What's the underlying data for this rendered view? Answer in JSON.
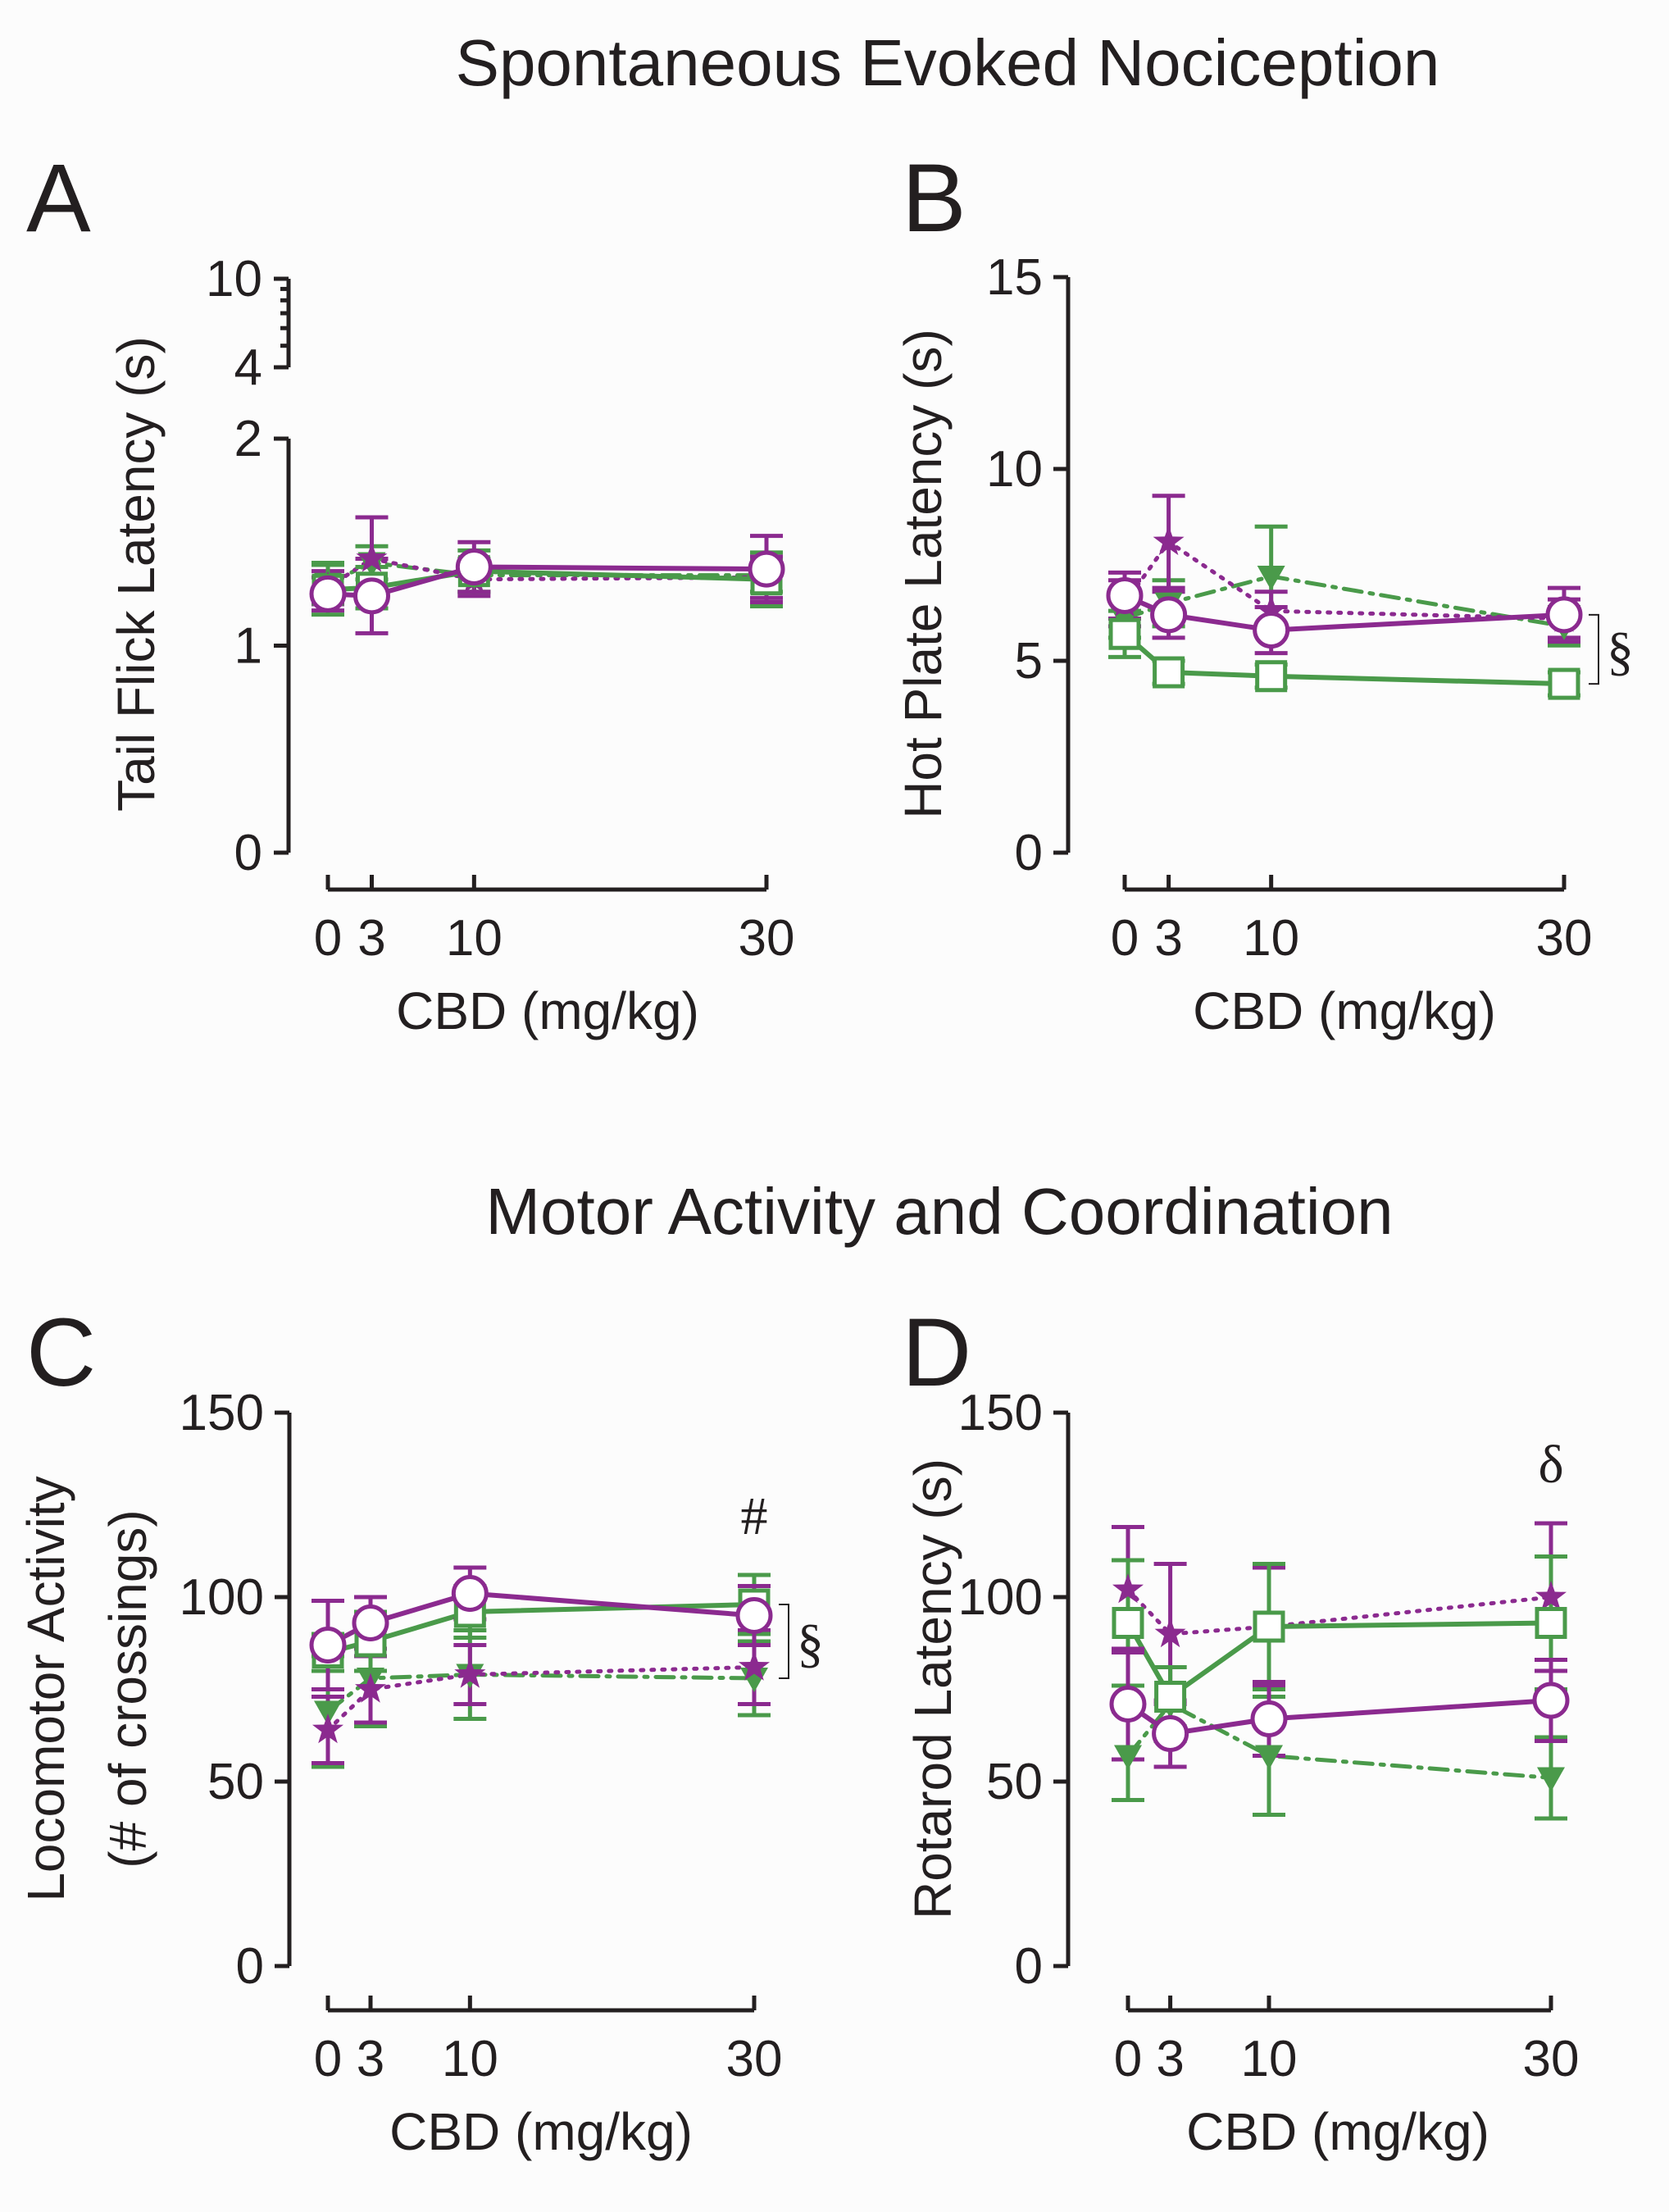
{
  "section_titles": {
    "top": "Spontaneous Evoked Nociception",
    "bottom": "Motor Activity and Coordination"
  },
  "colors": {
    "purple": "#8b2a8f",
    "green": "#4a9a4a",
    "axis": "#231f20",
    "background": "#fcfcfc"
  },
  "series_styles": [
    {
      "key": "purple_circle",
      "color": "purple",
      "marker": "open-circle",
      "line": "solid"
    },
    {
      "key": "green_square",
      "color": "green",
      "marker": "open-square",
      "line": "solid"
    },
    {
      "key": "purple_star",
      "color": "purple",
      "marker": "filled-star",
      "line": "dotted"
    },
    {
      "key": "green_triangle",
      "color": "green",
      "marker": "filled-triangle-down",
      "line": "dash-dot"
    }
  ],
  "chart_data": [
    {
      "panel": "A",
      "type": "line",
      "xlabel": "CBD (mg/kg)",
      "ylabel": "Tail Flick Latency (s)",
      "x": [
        0,
        3,
        10,
        30
      ],
      "x_ticks": [
        "0",
        "3",
        "10",
        "30"
      ],
      "xlim": [
        0,
        30
      ],
      "y_axis": "broken",
      "ylim_lower": [
        0,
        2
      ],
      "y_ticks_lower": [
        "0",
        "1",
        "2"
      ],
      "y_ticks_upper": [
        "4",
        "10"
      ],
      "series": [
        {
          "name": "purple_circle",
          "values": [
            1.25,
            1.24,
            1.38,
            1.37
          ],
          "err": [
            0.08,
            0.18,
            0.12,
            0.16
          ]
        },
        {
          "name": "green_square",
          "values": [
            1.27,
            1.28,
            1.36,
            1.32
          ],
          "err": [
            0.12,
            0.1,
            0.1,
            0.13
          ]
        },
        {
          "name": "purple_star",
          "values": [
            1.28,
            1.42,
            1.32,
            1.33
          ],
          "err": [
            0.08,
            0.2,
            0.08,
            0.1
          ]
        },
        {
          "name": "green_triangle",
          "values": [
            1.3,
            1.4,
            1.34,
            1.34
          ],
          "err": [
            0.1,
            0.08,
            0.08,
            0.08
          ]
        }
      ],
      "annotations": []
    },
    {
      "panel": "B",
      "type": "line",
      "xlabel": "CBD (mg/kg)",
      "ylabel": "Hot Plate Latency (s)",
      "x": [
        0,
        3,
        10,
        30
      ],
      "x_ticks": [
        "0",
        "3",
        "10",
        "30"
      ],
      "xlim": [
        0,
        30
      ],
      "ylim": [
        0,
        15
      ],
      "y_ticks": [
        "0",
        "5",
        "10",
        "15"
      ],
      "series": [
        {
          "name": "purple_circle",
          "values": [
            6.7,
            6.2,
            5.8,
            6.2
          ],
          "err": [
            0.6,
            0.6,
            0.6,
            0.7
          ]
        },
        {
          "name": "green_square",
          "values": [
            5.7,
            4.7,
            4.6,
            4.4
          ],
          "err": [
            0.6,
            0.3,
            0.3,
            0.3
          ]
        },
        {
          "name": "purple_star",
          "values": [
            6.5,
            8.1,
            6.3,
            6.1
          ],
          "err": [
            0.6,
            1.2,
            0.5,
            0.5
          ]
        },
        {
          "name": "green_triangle",
          "values": [
            6.1,
            6.5,
            7.2,
            5.9
          ],
          "err": [
            0.5,
            0.6,
            1.3,
            0.5
          ]
        }
      ],
      "annotations": [
        {
          "text": "§",
          "bracket_y": [
            4.4,
            6.2
          ]
        }
      ]
    },
    {
      "panel": "C",
      "type": "line",
      "xlabel": "CBD (mg/kg)",
      "ylabel_line1": "Locomotor Activity",
      "ylabel_line2": "(# of crossings)",
      "x": [
        0,
        3,
        10,
        30
      ],
      "x_ticks": [
        "0",
        "3",
        "10",
        "30"
      ],
      "xlim": [
        0,
        30
      ],
      "ylim": [
        0,
        150
      ],
      "y_ticks": [
        "0",
        "50",
        "100",
        "150"
      ],
      "series": [
        {
          "name": "purple_circle",
          "values": [
            87,
            93,
            101,
            95
          ],
          "err": [
            12,
            7,
            7,
            8
          ]
        },
        {
          "name": "green_square",
          "values": [
            85,
            88,
            96,
            98
          ],
          "err": [
            5,
            8,
            7,
            8
          ]
        },
        {
          "name": "purple_star",
          "values": [
            64,
            75,
            79,
            81
          ],
          "err": [
            9,
            9,
            8,
            10
          ]
        },
        {
          "name": "green_triangle",
          "values": [
            69,
            78,
            79,
            78
          ],
          "err": [
            15,
            13,
            12,
            10
          ]
        }
      ],
      "annotations": [
        {
          "text": "#",
          "x": 30
        },
        {
          "text": "§",
          "bracket_y": [
            78,
            98
          ]
        }
      ]
    },
    {
      "panel": "D",
      "type": "line",
      "xlabel": "CBD (mg/kg)",
      "ylabel": "Rotarod Latency (s)",
      "x": [
        0,
        3,
        10,
        30
      ],
      "x_ticks": [
        "0",
        "3",
        "10",
        "30"
      ],
      "xlim": [
        0,
        30
      ],
      "ylim": [
        0,
        150
      ],
      "y_ticks": [
        "0",
        "50",
        "100",
        "150"
      ],
      "series": [
        {
          "name": "purple_circle",
          "values": [
            71,
            63,
            67,
            72
          ],
          "err": [
            15,
            9,
            10,
            11
          ]
        },
        {
          "name": "green_square",
          "values": [
            93,
            73,
            92,
            93
          ],
          "err": [
            17,
            8,
            17,
            18
          ]
        },
        {
          "name": "purple_star",
          "values": [
            102,
            90,
            92,
            100
          ],
          "err": [
            17,
            19,
            16,
            20
          ]
        },
        {
          "name": "green_triangle",
          "values": [
            57,
            71,
            57,
            51
          ],
          "err": [
            12,
            10,
            16,
            11
          ]
        }
      ],
      "annotations": [
        {
          "text": "δ",
          "x": 30
        }
      ]
    }
  ]
}
